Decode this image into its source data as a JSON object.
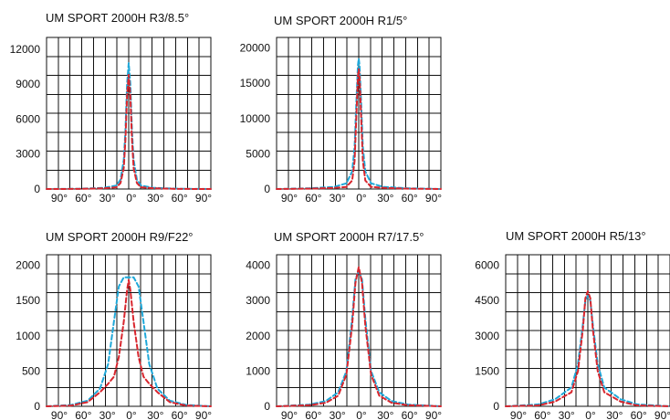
{
  "chart_data": [
    {
      "type": "line",
      "title": "UM SPORT 2000H R3/8.5°",
      "xlabel": "",
      "ylabel": "",
      "x_tick_labels": [
        "90°",
        "60°",
        "30°",
        "0°",
        "30°",
        "60°",
        "90°"
      ],
      "y_tick_labels": [
        "0",
        "3000",
        "6000",
        "9000",
        "12000"
      ],
      "xlim": [
        -100,
        100
      ],
      "ylim": [
        0,
        13000
      ],
      "grid": true,
      "colors": [
        "#1fa8d9",
        "#d8262e"
      ],
      "series": [
        {
          "x": [
            -100,
            -60,
            -30,
            -15,
            -10,
            -6,
            -4,
            -2,
            0,
            2,
            4,
            6,
            10,
            15,
            30,
            60,
            100
          ],
          "y": [
            0,
            20,
            100,
            300,
            800,
            2500,
            5000,
            9000,
            10800,
            9000,
            5000,
            2500,
            800,
            300,
            100,
            20,
            0
          ]
        },
        {
          "x": [
            -100,
            -60,
            -30,
            -15,
            -10,
            -6,
            -4,
            -2,
            0,
            2,
            4,
            6,
            10,
            15,
            30,
            60,
            100
          ],
          "y": [
            0,
            10,
            60,
            150,
            500,
            1800,
            4200,
            8000,
            9800,
            8000,
            4200,
            1800,
            500,
            150,
            60,
            10,
            0
          ]
        }
      ]
    },
    {
      "type": "line",
      "title": "UM SPORT 2000H R1/5°",
      "xlabel": "",
      "ylabel": "",
      "x_tick_labels": [
        "90°",
        "60°",
        "30°",
        "0°",
        "30°",
        "60°",
        "90°"
      ],
      "y_tick_labels": [
        "0",
        "5000",
        "10000",
        "15000",
        "20000"
      ],
      "xlim": [
        -100,
        100
      ],
      "ylim": [
        0,
        21500
      ],
      "grid": true,
      "colors": [
        "#1fa8d9",
        "#d8262e"
      ],
      "series": [
        {
          "x": [
            -100,
            -60,
            -30,
            -15,
            -8,
            -5,
            -3,
            -1,
            0,
            1,
            3,
            5,
            8,
            15,
            30,
            60,
            100
          ],
          "y": [
            0,
            100,
            300,
            800,
            2500,
            6000,
            12000,
            17500,
            18500,
            17500,
            12000,
            6000,
            2500,
            800,
            300,
            100,
            0
          ]
        },
        {
          "x": [
            -100,
            -60,
            -30,
            -15,
            -8,
            -5,
            -3,
            -1,
            0,
            1,
            3,
            5,
            8,
            15,
            30,
            60,
            100
          ],
          "y": [
            0,
            50,
            150,
            300,
            1200,
            4000,
            10000,
            16000,
            17000,
            16000,
            10000,
            4000,
            1200,
            300,
            150,
            50,
            0
          ]
        }
      ]
    },
    {
      "type": "line",
      "title": "UM SPORT 2000H R9/F22°",
      "xlabel": "",
      "ylabel": "",
      "x_tick_labels": [
        "90°",
        "60°",
        "30°",
        "0°",
        "30°",
        "60°",
        "90°"
      ],
      "y_tick_labels": [
        "0",
        "500",
        "1000",
        "1500",
        "2000"
      ],
      "xlim": [
        -100,
        100
      ],
      "ylim": [
        0,
        2150
      ],
      "grid": true,
      "colors": [
        "#1fa8d9",
        "#d8262e"
      ],
      "series": [
        {
          "x": [
            -100,
            -70,
            -50,
            -35,
            -25,
            -18,
            -12,
            -6,
            0,
            6,
            12,
            18,
            25,
            35,
            50,
            70,
            100
          ],
          "y": [
            0,
            20,
            80,
            250,
            600,
            1200,
            1700,
            1830,
            1830,
            1830,
            1700,
            1200,
            600,
            250,
            80,
            20,
            0
          ]
        },
        {
          "x": [
            -100,
            -70,
            -50,
            -35,
            -25,
            -18,
            -12,
            -6,
            -2,
            0,
            2,
            6,
            12,
            18,
            25,
            35,
            50,
            70,
            100
          ],
          "y": [
            0,
            10,
            60,
            200,
            320,
            420,
            700,
            1200,
            1650,
            1790,
            1650,
            1200,
            700,
            420,
            320,
            200,
            60,
            10,
            0
          ]
        }
      ]
    },
    {
      "type": "line",
      "title": "UM SPORT 2000H R7/17.5°",
      "xlabel": "",
      "ylabel": "",
      "x_tick_labels": [
        "90°",
        "60°",
        "30°",
        "0°",
        "30°",
        "60°",
        "90°"
      ],
      "y_tick_labels": [
        "0",
        "1000",
        "2000",
        "3000",
        "4000"
      ],
      "xlim": [
        -100,
        100
      ],
      "ylim": [
        0,
        4300
      ],
      "grid": true,
      "colors": [
        "#1fa8d9",
        "#d8262e"
      ],
      "series": [
        {
          "x": [
            -100,
            -60,
            -40,
            -25,
            -15,
            -8,
            -4,
            0,
            4,
            8,
            15,
            25,
            40,
            60,
            100
          ],
          "y": [
            0,
            50,
            150,
            400,
            1000,
            2500,
            3600,
            3850,
            3600,
            2500,
            1000,
            400,
            150,
            50,
            0
          ]
        },
        {
          "x": [
            -100,
            -60,
            -40,
            -25,
            -15,
            -8,
            -4,
            0,
            4,
            8,
            15,
            25,
            40,
            60,
            100
          ],
          "y": [
            0,
            30,
            100,
            300,
            900,
            2300,
            3500,
            3950,
            3500,
            2300,
            900,
            300,
            100,
            30,
            0
          ]
        }
      ]
    },
    {
      "type": "line",
      "title": "UM SPORT 2000H R5/13°",
      "xlabel": "",
      "ylabel": "",
      "x_tick_labels": [
        "90°",
        "60°",
        "30°",
        "0°",
        "30°",
        "60°",
        "90°"
      ],
      "y_tick_labels": [
        "0",
        "1500",
        "3000",
        "4500",
        "6000"
      ],
      "xlim": [
        -100,
        100
      ],
      "ylim": [
        0,
        6450
      ],
      "grid": true,
      "colors": [
        "#1fa8d9",
        "#d8262e"
      ],
      "series": [
        {
          "x": [
            -100,
            -60,
            -40,
            -20,
            -12,
            -6,
            -3,
            0,
            3,
            6,
            12,
            20,
            40,
            60,
            100
          ],
          "y": [
            0,
            80,
            300,
            800,
            1800,
            3500,
            4500,
            4700,
            4500,
            3500,
            1800,
            800,
            300,
            80,
            0
          ]
        },
        {
          "x": [
            -100,
            -60,
            -40,
            -20,
            -12,
            -6,
            -3,
            0,
            3,
            6,
            12,
            20,
            40,
            60,
            100
          ],
          "y": [
            0,
            40,
            200,
            600,
            1500,
            3300,
            4600,
            4900,
            4600,
            3300,
            1500,
            600,
            200,
            40,
            0
          ]
        }
      ]
    }
  ]
}
